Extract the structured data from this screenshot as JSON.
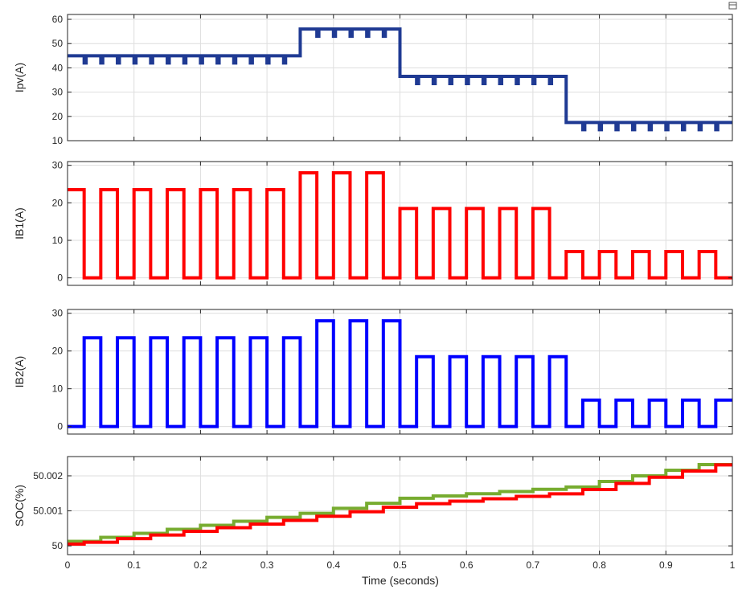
{
  "chart_data": [
    {
      "type": "line",
      "ylabel": "Ipv(A)",
      "xlim": [
        0,
        1
      ],
      "ylim": [
        10,
        62
      ],
      "yticks": [
        10,
        20,
        30,
        40,
        50,
        60
      ],
      "grid": true,
      "series": [
        {
          "color": "#1f3a93",
          "shape": "step",
          "ripple": {
            "depth": 3,
            "period": 0.025
          },
          "levels": [
            {
              "from": 0,
              "to": 0.35,
              "value": 45
            },
            {
              "from": 0.35,
              "to": 0.5,
              "value": 56
            },
            {
              "from": 0.5,
              "to": 0.75,
              "value": 36.5
            },
            {
              "from": 0.75,
              "to": 1,
              "value": 17.5
            }
          ]
        }
      ]
    },
    {
      "type": "line",
      "ylabel": "IB1(A)",
      "xlim": [
        0,
        1
      ],
      "ylim": [
        -2,
        31
      ],
      "yticks": [
        0,
        10,
        20,
        30
      ],
      "grid": true,
      "series": [
        {
          "color": "#ff0000",
          "shape": "square-wave",
          "period": 0.05,
          "phase": "high-first",
          "duty": 0.5,
          "low": 0,
          "levels": [
            {
              "from": 0,
              "to": 0.35,
              "value": 23.5
            },
            {
              "from": 0.35,
              "to": 0.5,
              "value": 28
            },
            {
              "from": 0.5,
              "to": 0.75,
              "value": 18.5
            },
            {
              "from": 0.75,
              "to": 1,
              "value": 7
            }
          ]
        }
      ]
    },
    {
      "type": "line",
      "ylabel": "IB2(A)",
      "xlim": [
        0,
        1
      ],
      "ylim": [
        -2,
        31
      ],
      "yticks": [
        0,
        10,
        20,
        30
      ],
      "grid": true,
      "series": [
        {
          "color": "#0000ff",
          "shape": "square-wave",
          "period": 0.05,
          "phase": "low-first",
          "duty": 0.5,
          "low": 0,
          "levels": [
            {
              "from": 0,
              "to": 0.35,
              "value": 23.5
            },
            {
              "from": 0.35,
              "to": 0.5,
              "value": 28
            },
            {
              "from": 0.5,
              "to": 0.75,
              "value": 18.5
            },
            {
              "from": 0.75,
              "to": 1,
              "value": 7
            }
          ]
        }
      ]
    },
    {
      "type": "line",
      "ylabel": "SOC(%)",
      "xlabel": "Time (seconds)",
      "xlim": [
        0,
        1
      ],
      "ylim": [
        49.99975,
        50.00255
      ],
      "yticks": [
        50,
        50.001,
        50.002
      ],
      "ytick_labels": [
        "50",
        "50.001",
        "50.002"
      ],
      "xticks": [
        0,
        0.1,
        0.2,
        0.3,
        0.4,
        0.5,
        0.6,
        0.7,
        0.8,
        0.9,
        1
      ],
      "xtick_labels": [
        "0",
        "0.1",
        "0.2",
        "0.3",
        "0.4",
        "0.5",
        "0.6",
        "0.7",
        "0.8",
        "0.9",
        "1"
      ],
      "grid": true,
      "series": [
        {
          "color": "#77ac30",
          "shape": "staircase",
          "step": 0.05,
          "stair_phase": 0,
          "x": [
            0,
            0.35,
            0.5,
            0.75,
            1
          ],
          "y": [
            50.00013,
            50.00093,
            50.00136,
            50.00168,
            50.00248
          ]
        },
        {
          "color": "#ff0000",
          "shape": "staircase",
          "step": 0.05,
          "stair_phase": 0.025,
          "x": [
            0,
            0.35,
            0.5,
            0.75,
            1
          ],
          "y": [
            50.00005,
            50.00078,
            50.00117,
            50.00152,
            50.0024
          ]
        }
      ]
    }
  ]
}
